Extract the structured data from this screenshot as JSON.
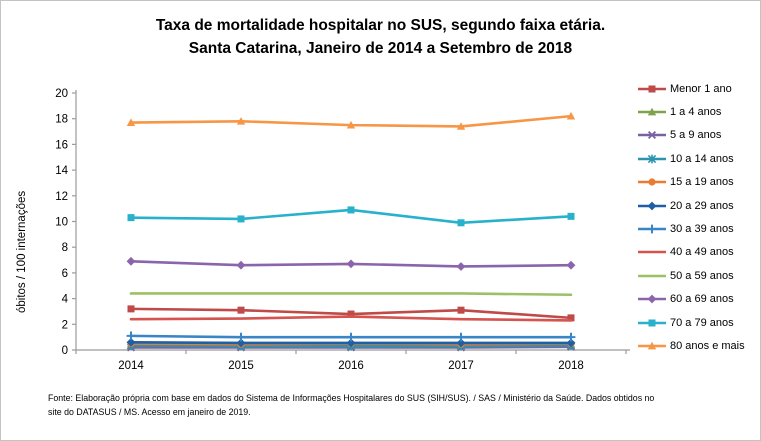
{
  "header": {
    "title_line1": "Taxa de mortalidade hospitalar no SUS, segundo faixa etária.",
    "title_line2": "Santa Catarina, Janeiro de 2014 a Setembro de 2018"
  },
  "chart_data": {
    "type": "line",
    "title": "Taxa de mortalidade hospitalar no SUS, segundo faixa etária. Santa Catarina, Janeiro de 2014 a Setembro de 2018",
    "categories": [
      "2014",
      "2015",
      "2016",
      "2017",
      "2018"
    ],
    "xlabel": "",
    "ylabel": "óbitos / 100 internações",
    "ylim": [
      0,
      20
    ],
    "ytick_step": 2,
    "grid": false,
    "legend_position": "right",
    "axis_color": "#9b9b9b",
    "series": [
      {
        "name": "Menor 1 ano",
        "color": "#BE4B48",
        "marker": "square",
        "values": [
          3.2,
          3.1,
          2.8,
          3.1,
          2.5
        ]
      },
      {
        "name": "1 a 4 anos",
        "color": "#7FA24A",
        "marker": "triangle",
        "values": [
          0.45,
          0.4,
          0.4,
          0.4,
          0.45
        ]
      },
      {
        "name": "5 a 9 anos",
        "color": "#7C61A1",
        "marker": "x",
        "values": [
          0.2,
          0.2,
          0.2,
          0.2,
          0.25
        ]
      },
      {
        "name": "10 a 14 anos",
        "color": "#2D93AF",
        "marker": "asterisk",
        "values": [
          0.35,
          0.3,
          0.3,
          0.3,
          0.35
        ]
      },
      {
        "name": "15 a 19 anos",
        "color": "#E97C30",
        "marker": "circle",
        "values": [
          0.5,
          0.45,
          0.5,
          0.45,
          0.5
        ]
      },
      {
        "name": "20 a 29 anos",
        "color": "#1F5FA5",
        "marker": "diamond",
        "values": [
          0.6,
          0.55,
          0.55,
          0.55,
          0.55
        ]
      },
      {
        "name": "30 a 39 anos",
        "color": "#3886C7",
        "marker": "plus",
        "values": [
          1.1,
          1.0,
          1.0,
          1.0,
          1.0
        ]
      },
      {
        "name": "40 a 49 anos",
        "color": "#D55450",
        "marker": "none",
        "values": [
          2.4,
          2.45,
          2.6,
          2.4,
          2.3
        ]
      },
      {
        "name": "50 a 59 anos",
        "color": "#9CC065",
        "marker": "none",
        "values": [
          4.4,
          4.4,
          4.4,
          4.4,
          4.3
        ]
      },
      {
        "name": "60 a 69 anos",
        "color": "#8A65AC",
        "marker": "diamond",
        "values": [
          6.9,
          6.6,
          6.7,
          6.5,
          6.6
        ]
      },
      {
        "name": "70 a 79 anos",
        "color": "#27B1CB",
        "marker": "square",
        "values": [
          10.3,
          10.2,
          10.9,
          9.9,
          10.4
        ]
      },
      {
        "name": "80 anos e mais",
        "color": "#F79646",
        "marker": "triangle",
        "values": [
          17.7,
          17.8,
          17.5,
          17.4,
          18.2
        ]
      }
    ]
  },
  "footer": {
    "source_line1": "Fonte: Elaboração própria com base em dados do  Sistema de Informações Hospitalares do SUS (SIH/SUS). / SAS / Ministério da Saúde. Dados obtidos no",
    "source_line2": "site do DATASUS / MS. Acesso em janeiro de 2019."
  }
}
